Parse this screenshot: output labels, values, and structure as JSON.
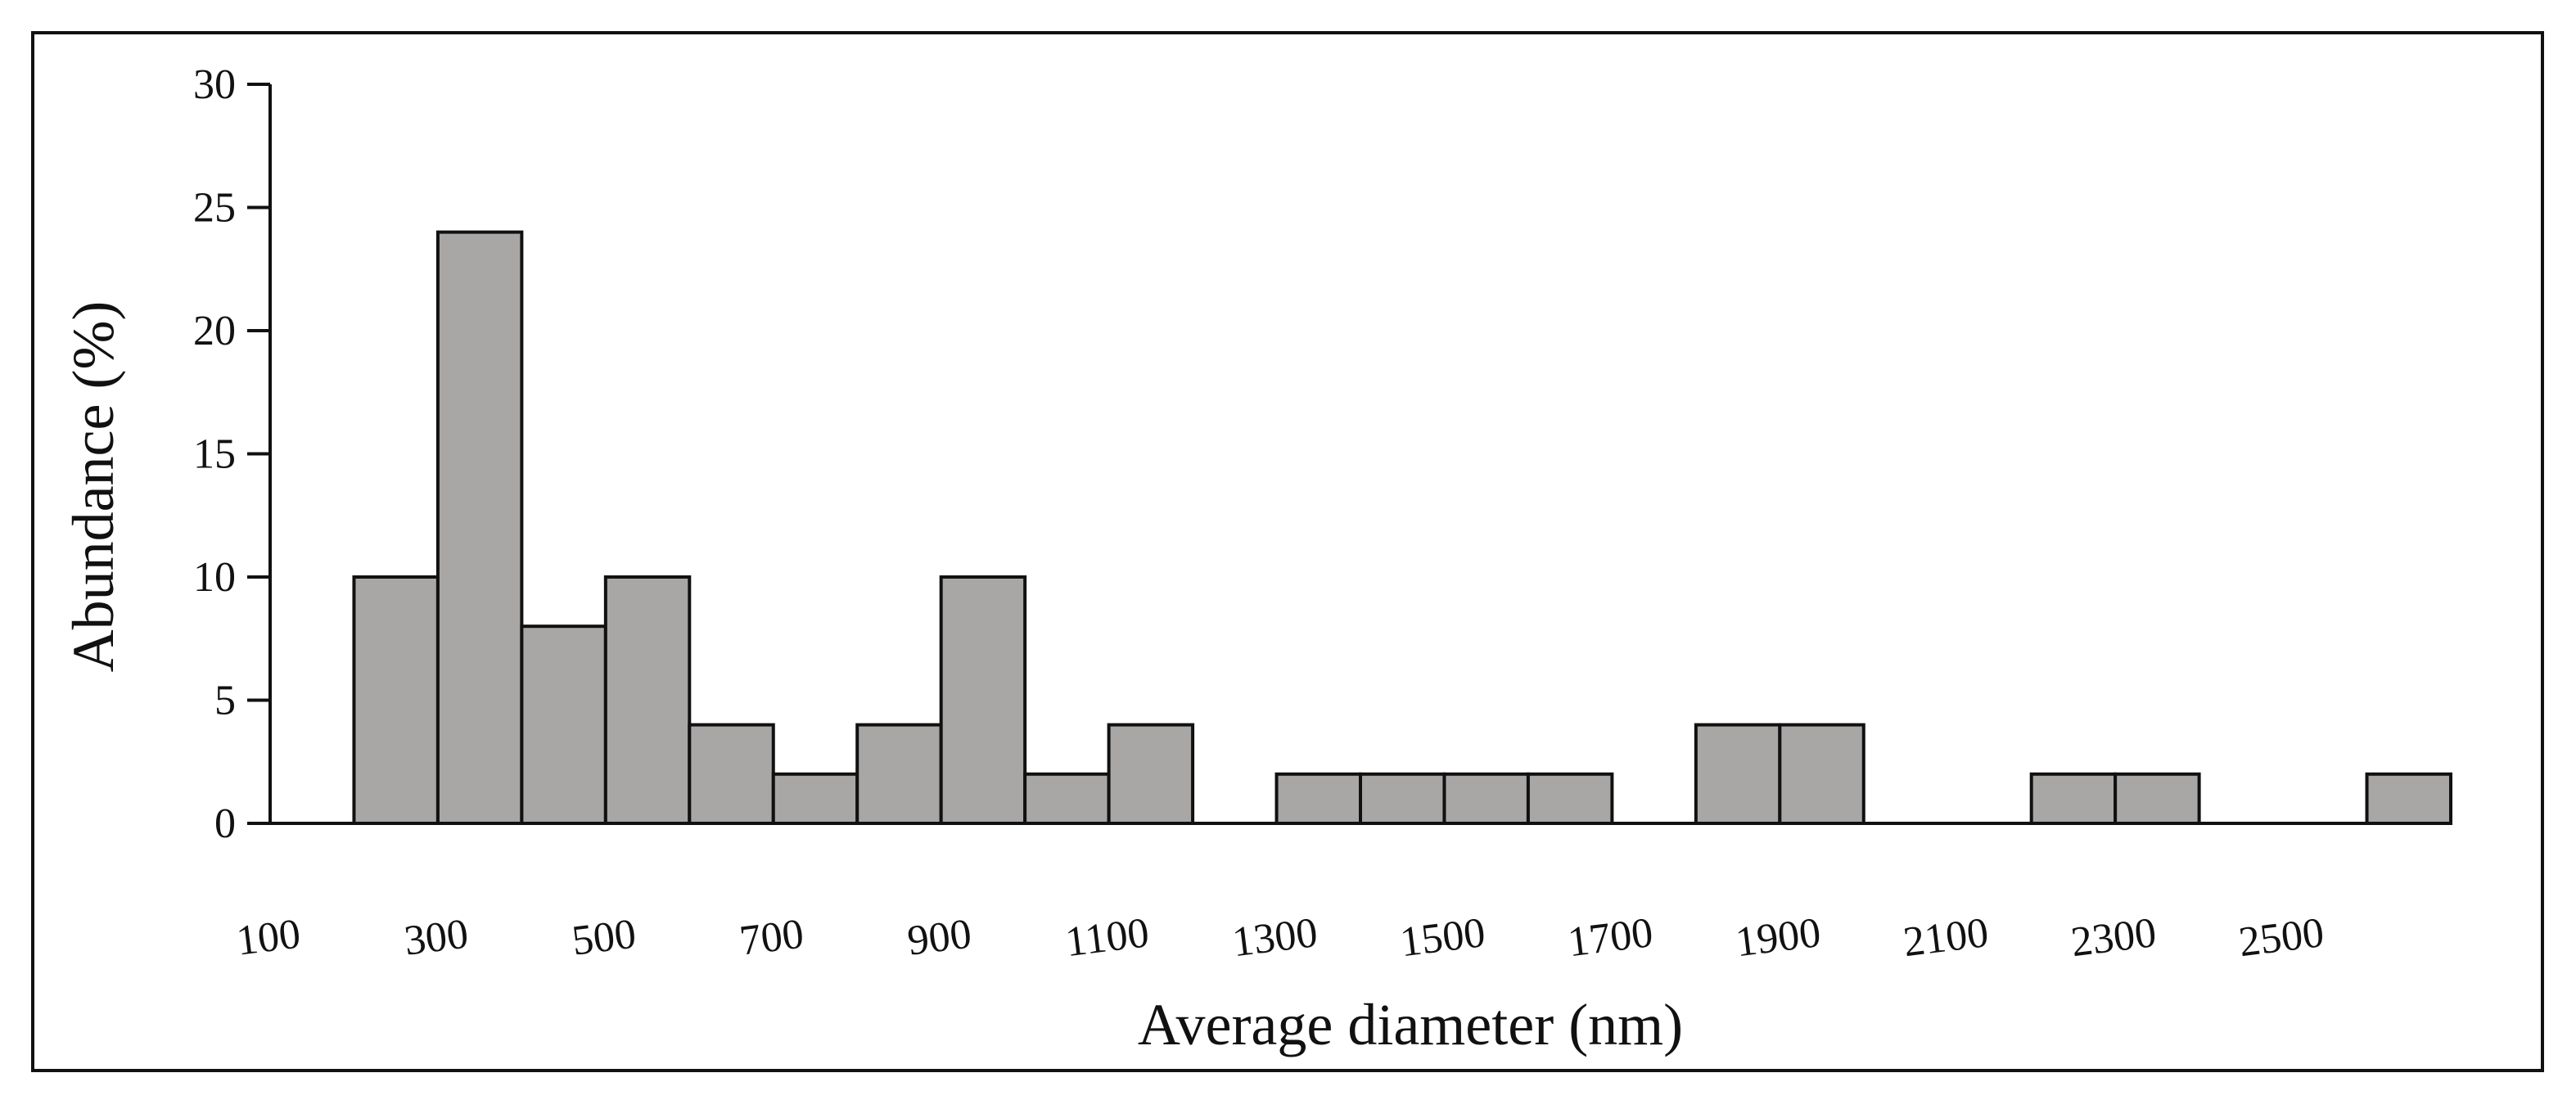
{
  "chart_data": {
    "type": "bar",
    "title": "",
    "xlabel": "Average diameter (nm)",
    "ylabel": "Abundance (%)",
    "ylim": [
      0,
      30
    ],
    "yticks": [
      "0",
      "5",
      "10",
      "15",
      "20",
      "25",
      "30"
    ],
    "xticks": [
      "100",
      "300",
      "500",
      "700",
      "900",
      "1100",
      "1300",
      "1500",
      "1700",
      "1900",
      "2100",
      "2300",
      "2500"
    ],
    "bin_width": 100,
    "bins": [
      {
        "start": 100,
        "end": 200,
        "value": 0
      },
      {
        "start": 200,
        "end": 300,
        "value": 10
      },
      {
        "start": 300,
        "end": 400,
        "value": 24
      },
      {
        "start": 400,
        "end": 500,
        "value": 8
      },
      {
        "start": 500,
        "end": 600,
        "value": 10
      },
      {
        "start": 600,
        "end": 700,
        "value": 4
      },
      {
        "start": 700,
        "end": 800,
        "value": 2
      },
      {
        "start": 800,
        "end": 900,
        "value": 4
      },
      {
        "start": 900,
        "end": 1000,
        "value": 10
      },
      {
        "start": 1000,
        "end": 1100,
        "value": 2
      },
      {
        "start": 1100,
        "end": 1200,
        "value": 4
      },
      {
        "start": 1200,
        "end": 1300,
        "value": 0
      },
      {
        "start": 1300,
        "end": 1400,
        "value": 2
      },
      {
        "start": 1400,
        "end": 1500,
        "value": 2
      },
      {
        "start": 1500,
        "end": 1600,
        "value": 2
      },
      {
        "start": 1600,
        "end": 1700,
        "value": 2
      },
      {
        "start": 1700,
        "end": 1800,
        "value": 0
      },
      {
        "start": 1800,
        "end": 1900,
        "value": 4
      },
      {
        "start": 1900,
        "end": 2000,
        "value": 4
      },
      {
        "start": 2000,
        "end": 2100,
        "value": 0
      },
      {
        "start": 2100,
        "end": 2200,
        "value": 0
      },
      {
        "start": 2200,
        "end": 2300,
        "value": 2
      },
      {
        "start": 2300,
        "end": 2400,
        "value": 2
      },
      {
        "start": 2400,
        "end": 2500,
        "value": 0
      },
      {
        "start": 2500,
        "end": 2600,
        "value": 0
      },
      {
        "start": 2600,
        "end": 2700,
        "value": 2
      }
    ],
    "bar_fill": "#a9a7a6",
    "bar_stroke": "#111111",
    "grid": false,
    "legend": "none"
  }
}
